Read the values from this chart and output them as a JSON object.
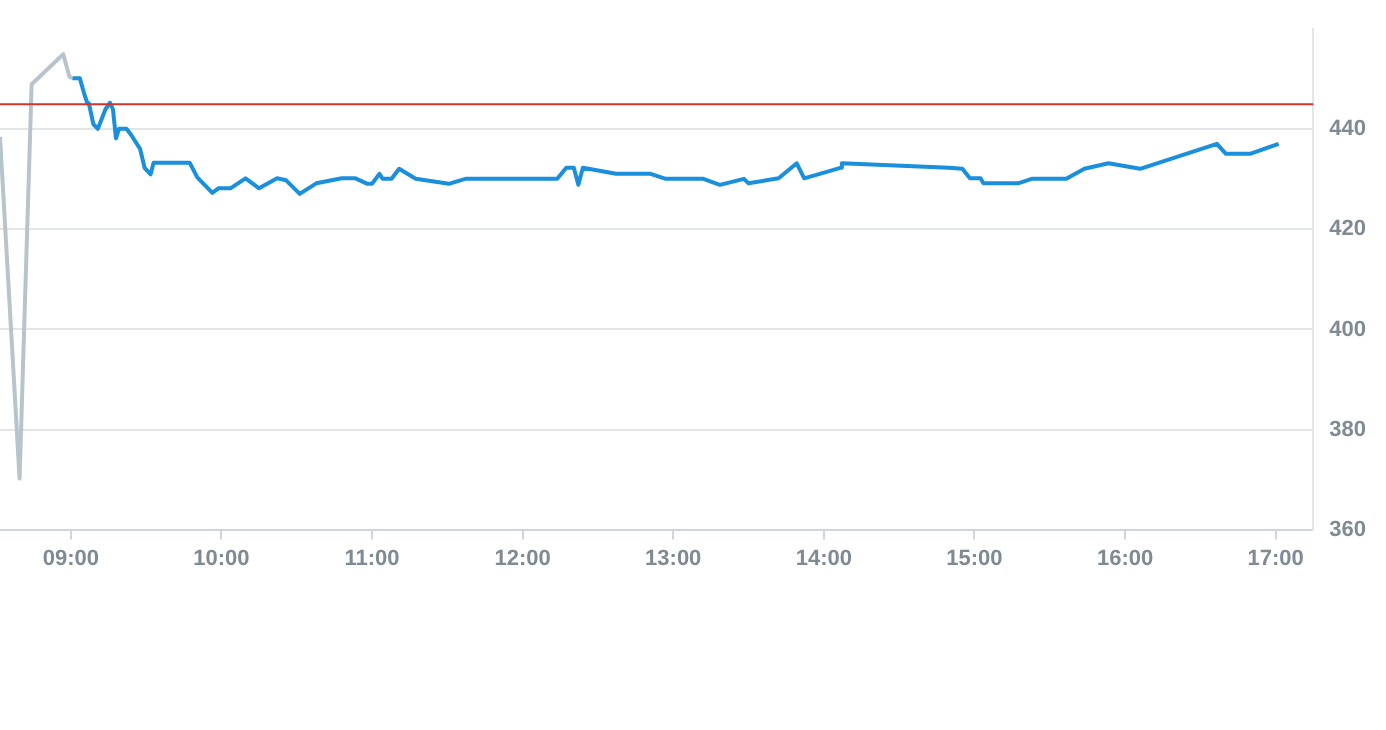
{
  "chart_data": {
    "type": "line",
    "xlim": [
      8.53,
      17.25
    ],
    "xticks": [
      {
        "value": 9,
        "label": "09:00"
      },
      {
        "value": 10,
        "label": "10:00"
      },
      {
        "value": 11,
        "label": "11:00"
      },
      {
        "value": 12,
        "label": "12:00"
      },
      {
        "value": 13,
        "label": "13:00"
      },
      {
        "value": 14,
        "label": "14:00"
      },
      {
        "value": 15,
        "label": "15:00"
      },
      {
        "value": 16,
        "label": "16:00"
      },
      {
        "value": 17,
        "label": "17:00"
      }
    ],
    "ylim": [
      360,
      460
    ],
    "yticks": [
      360,
      380,
      400,
      420,
      440
    ],
    "grid": "y",
    "legend": false,
    "marker": "none",
    "line_style": "solid",
    "ref_lines": [
      {
        "axis": "y",
        "value": 445,
        "color": "#d0342c"
      }
    ],
    "series": [
      {
        "color": "#b8c4cc",
        "x": [
          8.53,
          8.66,
          8.74,
          8.95,
          8.99,
          9.01
        ],
        "values": [
          438.5,
          370.2,
          449,
          455,
          450.6,
          450.2
        ]
      },
      {
        "color": "#1a8fdc",
        "x": [
          9.01,
          9.06,
          9.09,
          9.11,
          9.12,
          9.15,
          9.18,
          9.23,
          9.26,
          9.28,
          9.3,
          9.32,
          9.37,
          9.4,
          9.46,
          9.49,
          9.53,
          9.55,
          9.79,
          9.84,
          9.94,
          9.98,
          10.06,
          10.16,
          10.25,
          10.37,
          10.43,
          10.52,
          10.63,
          10.8,
          10.89,
          10.97,
          11,
          11.05,
          11.07,
          11.13,
          11.18,
          11.29,
          11.51,
          11.62,
          12.23,
          12.29,
          12.34,
          12.37,
          12.4,
          12.62,
          12.85,
          12.95,
          13.2,
          13.31,
          13.47,
          13.5,
          13.7,
          13.82,
          13.87,
          14.11,
          14.12,
          14.83,
          14.92,
          14.97,
          15.04,
          15.06,
          15.29,
          15.38,
          15.61,
          15.73,
          15.89,
          16.1,
          16.61,
          16.67,
          16.83,
          17.02
        ],
        "values": [
          450.2,
          450.2,
          447,
          445.2,
          445.2,
          441,
          440.1,
          444,
          445.3,
          444,
          438.2,
          440.1,
          440.1,
          438.9,
          436.1,
          432.3,
          431,
          433.3,
          433.3,
          430.4,
          427.3,
          428.2,
          428.2,
          430.2,
          428.2,
          430.2,
          429.8,
          427.1,
          429.2,
          430.2,
          430.2,
          429.1,
          429.1,
          431.1,
          430.1,
          430.1,
          432.1,
          430.1,
          429.1,
          430.1,
          430.1,
          432.3,
          432.3,
          428.9,
          432.3,
          431.1,
          431.1,
          430.1,
          430.1,
          428.9,
          430.1,
          429.2,
          430.2,
          433.2,
          430.2,
          432.3,
          433.2,
          432.3,
          432.1,
          430.2,
          430.2,
          429.2,
          429.2,
          430.1,
          430.1,
          432.1,
          433.2,
          432.1,
          437.1,
          435.1,
          435.1,
          437.1
        ]
      }
    ]
  }
}
